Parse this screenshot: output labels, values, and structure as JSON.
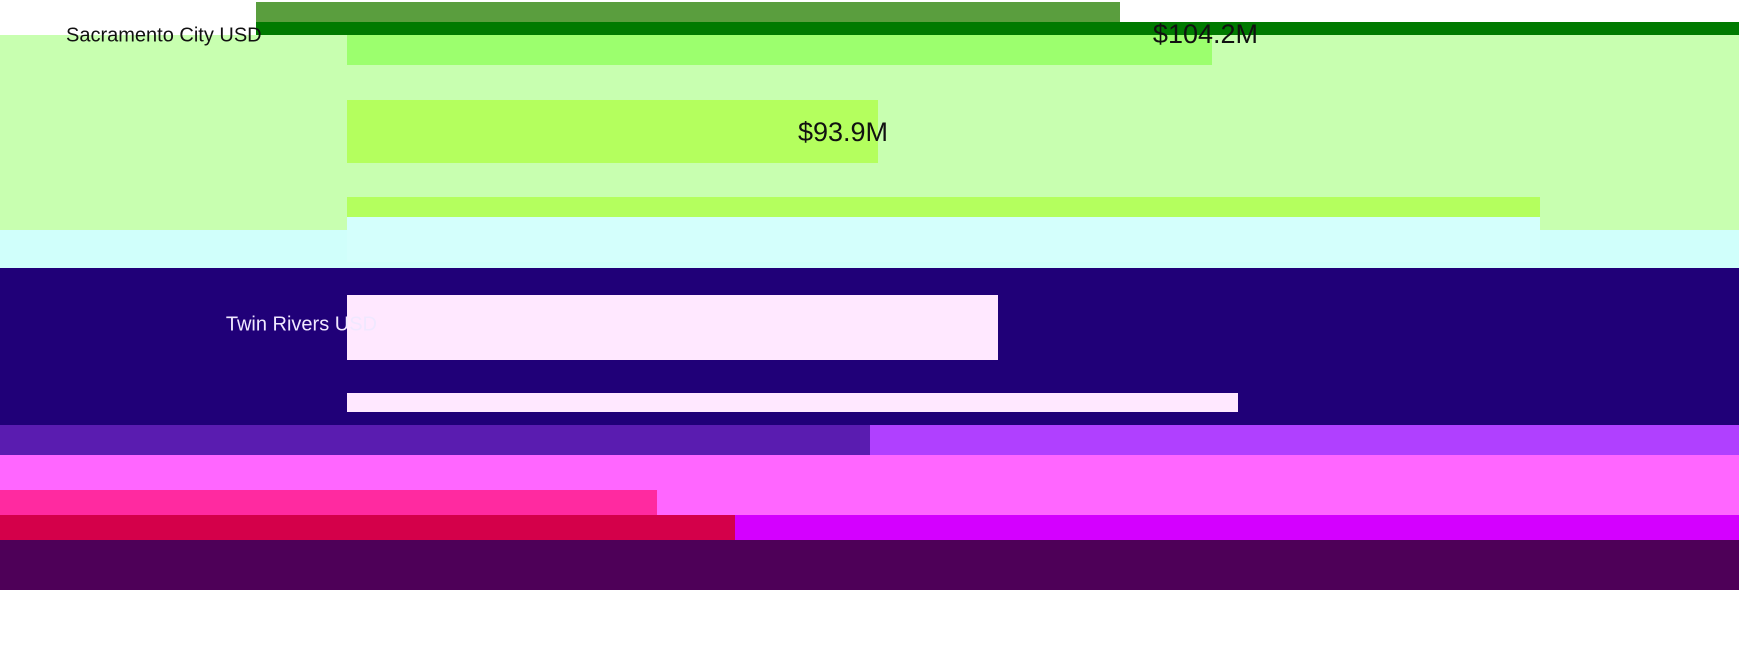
{
  "rows": [
    {
      "label": "Sacramento City USD",
      "value_label": "$104.2M"
    },
    {
      "value_label": "$93.9M"
    },
    {
      "label": "Twin Rivers USD"
    }
  ]
}
